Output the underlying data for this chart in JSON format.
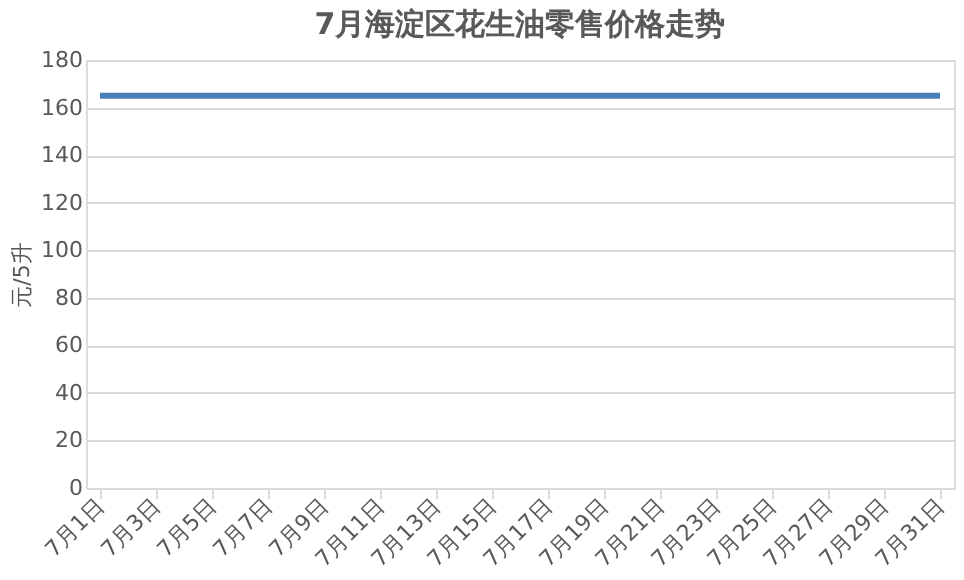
{
  "chart_data": {
    "type": "line",
    "title": "7月海淀区花生油零售价格走势",
    "ylabel": "元/5升",
    "categories": [
      "7月1日",
      null,
      "7月3日",
      null,
      "7月5日",
      null,
      "7月7日",
      null,
      "7月9日",
      null,
      "7月11日",
      null,
      "7月13日",
      null,
      "7月15日",
      null,
      "7月17日",
      null,
      "7月19日",
      null,
      "7月21日",
      null,
      "7月23日",
      null,
      "7月25日",
      null,
      "7月27日",
      null,
      "7月29日",
      null,
      "7月31日"
    ],
    "series": [
      {
        "color": "#4a7ebb",
        "values": [
          165,
          165,
          165,
          165,
          165,
          165,
          165,
          165,
          165,
          165,
          165,
          165,
          165,
          165,
          165,
          165,
          165,
          165,
          165,
          165,
          165,
          165,
          165,
          165,
          165,
          165,
          165,
          165,
          165,
          165,
          165
        ]
      }
    ],
    "ylim": [
      0,
      180
    ],
    "yticks": [
      0,
      20,
      40,
      60,
      80,
      100,
      120,
      140,
      160,
      180
    ],
    "grid": "y",
    "line_style": "solid"
  }
}
